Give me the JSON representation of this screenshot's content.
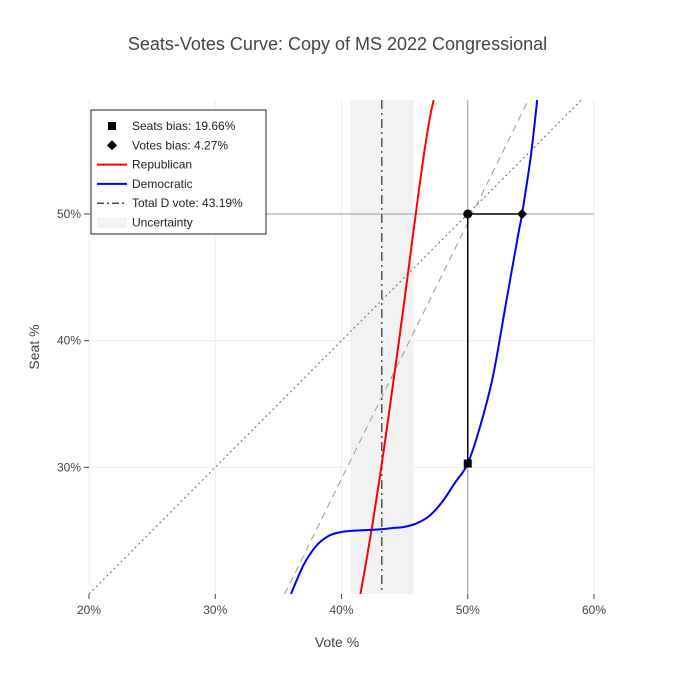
{
  "chart_data": {
    "type": "line",
    "title": "Seats-Votes Curve: Copy of MS 2022 Congressional",
    "xlabel": "Vote %",
    "ylabel": "Seat %",
    "xlim": [
      20,
      60
    ],
    "ylim": [
      20,
      59
    ],
    "x_ticks": [
      {
        "value": 20,
        "label": "20%"
      },
      {
        "value": 30,
        "label": "30%"
      },
      {
        "value": 40,
        "label": "40%"
      },
      {
        "value": 50,
        "label": "50%"
      },
      {
        "value": 60,
        "label": "60%"
      }
    ],
    "y_ticks": [
      {
        "value": 30,
        "label": "30%"
      },
      {
        "value": 40,
        "label": "40%"
      },
      {
        "value": 50,
        "label": "50%"
      }
    ],
    "grid": true,
    "legend_position": "top-left",
    "legend": [
      {
        "label": "Seats bias: 19.66%",
        "symbol": "square",
        "color": "#000000"
      },
      {
        "label": "Votes bias: 4.27%",
        "symbol": "diamond",
        "color": "#000000"
      },
      {
        "label": "Republican",
        "symbol": "line",
        "color": "#ff0000"
      },
      {
        "label": "Democratic",
        "symbol": "line",
        "color": "#0000ff"
      },
      {
        "label": "Total D vote: 43.19%",
        "symbol": "dashdot",
        "color": "#444444"
      },
      {
        "label": "Uncertainty",
        "symbol": "band",
        "color": "#f2f2f2"
      }
    ],
    "uncertainty_band": [
      40.7,
      45.7
    ],
    "total_d_vote": 43.19,
    "series": [
      {
        "name": "Republican",
        "color": "#ff0000",
        "x": [
          41.5,
          42.0,
          42.5,
          43.0,
          43.5,
          44.0,
          44.5,
          45.0,
          45.5,
          46.0,
          46.5,
          47.0,
          47.3
        ],
        "y": [
          20.0,
          22.8,
          25.8,
          29.0,
          32.4,
          36.0,
          39.6,
          43.3,
          47.1,
          50.9,
          54.5,
          57.6,
          59.0
        ]
      },
      {
        "name": "Democratic",
        "color": "#0000ff",
        "x": [
          36.0,
          37.0,
          38.0,
          39.0,
          40.0,
          41.0,
          42.0,
          43.0,
          44.0,
          45.0,
          46.0,
          47.0,
          48.0,
          49.0,
          50.0,
          51.0,
          52.0,
          53.0,
          54.0,
          54.3,
          55.0,
          55.5
        ],
        "y": [
          20.0,
          22.3,
          23.8,
          24.6,
          24.9,
          25.0,
          25.05,
          25.1,
          25.2,
          25.3,
          25.6,
          26.2,
          27.3,
          28.8,
          30.3,
          33.3,
          37.2,
          42.8,
          48.4,
          50.0,
          54.6,
          59.0
        ]
      }
    ],
    "reference_lines": [
      {
        "name": "diagonal",
        "x": [
          20,
          59
        ],
        "y": [
          20,
          59
        ],
        "color": "#666666",
        "dash": "dot"
      },
      {
        "name": "steep diagonal",
        "x": [
          35.5,
          54.8
        ],
        "y": [
          20,
          59
        ],
        "color": "#999999",
        "dash": "dash"
      },
      {
        "name": "50% seat line",
        "x": [
          20,
          60
        ],
        "y": [
          50,
          50
        ],
        "color": "#999999",
        "dash": "solid"
      },
      {
        "name": "50% vote line",
        "x": [
          50,
          50
        ],
        "y": [
          20,
          59
        ],
        "color": "#999999",
        "dash": "solid"
      }
    ],
    "bias_segments": [
      {
        "name": "seats bias segment",
        "x": [
          50,
          50
        ],
        "y": [
          30.3,
          50
        ],
        "color": "#000000"
      },
      {
        "name": "votes bias segment",
        "x": [
          50,
          54.3
        ],
        "y": [
          50,
          50
        ],
        "color": "#000000"
      }
    ],
    "markers": [
      {
        "name": "seats-bias-marker",
        "symbol": "square",
        "x": 50,
        "y": 30.3
      },
      {
        "name": "votes-bias-marker",
        "symbol": "diamond",
        "x": 54.3,
        "y": 50
      },
      {
        "name": "midpoint-marker",
        "symbol": "circle",
        "x": 50,
        "y": 50
      }
    ]
  }
}
